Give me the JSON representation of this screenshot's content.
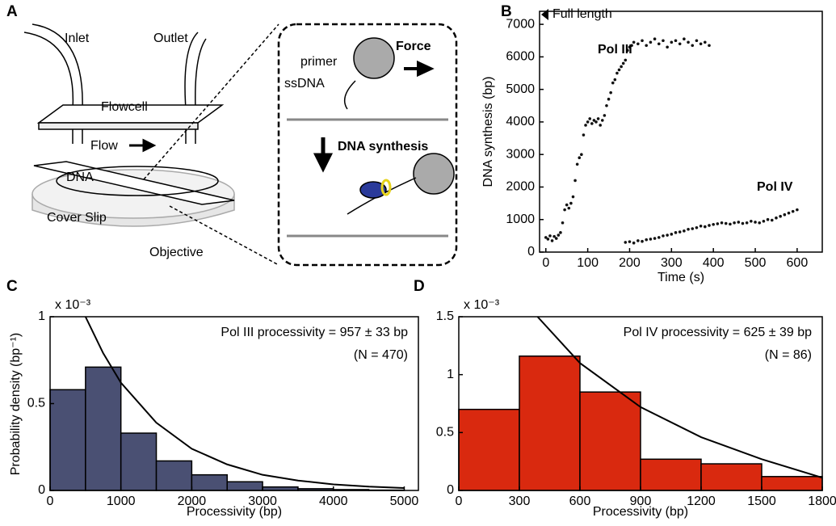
{
  "panel_labels": [
    "A",
    "B",
    "C",
    "D"
  ],
  "diagram": {
    "inlet": "Inlet",
    "outlet": "Outlet",
    "flowcell": "Flowcell",
    "flow": "Flow",
    "dna": "DNA",
    "cover_slip": "Cover Slip",
    "objective": "Objective",
    "primer": "primer",
    "ssdna": "ssDNA",
    "force": "Force",
    "dna_synthesis": "DNA synthesis"
  },
  "chart_data": [
    {
      "type": "scatter",
      "xlabel": "Time (s)",
      "ylabel": "DNA synthesis (bp)",
      "xlim": [
        -15,
        660
      ],
      "ylim": [
        0,
        7400
      ],
      "xticks": [
        0,
        100,
        200,
        300,
        400,
        500,
        600
      ],
      "yticks": [
        0,
        1000,
        2000,
        3000,
        4000,
        5000,
        6000,
        7000
      ],
      "annotations": [
        {
          "text": "Full length",
          "y": 7300
        }
      ],
      "series": [
        {
          "name": "Pol III",
          "color": "#111111",
          "label_color": "#4a4a8a",
          "x": [
            0,
            5,
            10,
            15,
            20,
            25,
            30,
            35,
            40,
            45,
            50,
            55,
            60,
            65,
            70,
            75,
            80,
            85,
            90,
            95,
            100,
            105,
            110,
            115,
            120,
            125,
            130,
            135,
            140,
            145,
            150,
            155,
            160,
            165,
            170,
            175,
            180,
            185,
            190,
            195,
            200,
            205,
            210,
            220,
            230,
            240,
            250,
            260,
            270,
            280,
            290,
            300,
            310,
            320,
            330,
            340,
            350,
            360,
            370,
            380,
            390
          ],
          "values": [
            450,
            400,
            500,
            350,
            480,
            420,
            520,
            600,
            900,
            1300,
            1450,
            1350,
            1500,
            1700,
            2200,
            2700,
            2900,
            3000,
            3600,
            3900,
            4000,
            4100,
            3950,
            4050,
            4000,
            4100,
            3900,
            4050,
            4200,
            4500,
            4700,
            4900,
            5200,
            5300,
            5500,
            5600,
            5700,
            5800,
            5900,
            6200,
            6300,
            6350,
            6450,
            6400,
            6500,
            6350,
            6450,
            6550,
            6400,
            6500,
            6300,
            6450,
            6500,
            6400,
            6550,
            6450,
            6350,
            6500,
            6400,
            6450,
            6350
          ]
        },
        {
          "name": "Pol IV",
          "color": "#111111",
          "label_color": "#e0161b",
          "x": [
            190,
            200,
            210,
            220,
            230,
            240,
            250,
            260,
            270,
            280,
            290,
            300,
            310,
            320,
            330,
            340,
            350,
            360,
            370,
            380,
            390,
            400,
            410,
            420,
            430,
            440,
            450,
            460,
            470,
            480,
            490,
            500,
            510,
            520,
            530,
            540,
            550,
            560,
            570,
            580,
            590,
            600
          ],
          "values": [
            300,
            320,
            280,
            350,
            330,
            380,
            400,
            420,
            450,
            500,
            520,
            550,
            600,
            620,
            650,
            700,
            720,
            750,
            800,
            780,
            820,
            850,
            870,
            900,
            880,
            860,
            900,
            920,
            880,
            900,
            950,
            920,
            900,
            950,
            1000,
            980,
            1050,
            1100,
            1150,
            1200,
            1250,
            1300
          ]
        }
      ]
    },
    {
      "type": "histogram",
      "xlabel": "Processivity (bp)",
      "ylabel": "Probability density (bp⁻¹)",
      "scale_label": "x 10⁻³",
      "xlim": [
        0,
        5200
      ],
      "ylim": [
        0,
        1
      ],
      "xticks": [
        0,
        1000,
        2000,
        3000,
        4000,
        5000
      ],
      "yticks": [
        0,
        0.5,
        1
      ],
      "bins": [
        0,
        500,
        1000,
        1500,
        2000,
        2500,
        3000,
        3500,
        4000,
        4500,
        5000
      ],
      "values": [
        0.58,
        0.71,
        0.33,
        0.17,
        0.09,
        0.05,
        0.02,
        0.01,
        0.005,
        0.002
      ],
      "color": "#4a5073",
      "fit": {
        "x": [
          500,
          750,
          1000,
          1500,
          2000,
          2500,
          3000,
          3500,
          4000,
          4500,
          5000
        ],
        "values": [
          1.0,
          0.79,
          0.62,
          0.39,
          0.24,
          0.15,
          0.09,
          0.057,
          0.035,
          0.022,
          0.014
        ],
        "color": "#000000"
      },
      "annotations": [
        "Pol III processivity = 957 ± 33 bp",
        "(N = 470)"
      ]
    },
    {
      "type": "histogram",
      "xlabel": "Processivity (bp)",
      "scale_label": "x 10⁻³",
      "xlim": [
        0,
        1800
      ],
      "ylim": [
        0,
        1.5
      ],
      "xticks": [
        0,
        300,
        600,
        900,
        1200,
        1500,
        1800
      ],
      "yticks": [
        0,
        0.5,
        1,
        1.5
      ],
      "bins": [
        0,
        300,
        600,
        900,
        1200,
        1500,
        1800
      ],
      "values": [
        0.7,
        1.16,
        0.85,
        0.27,
        0.23,
        0.12
      ],
      "color": "#d9290f",
      "fit": {
        "x": [
          390,
          600,
          900,
          1200,
          1500,
          1800
        ],
        "values": [
          1.5,
          1.1,
          0.72,
          0.46,
          0.27,
          0.11
        ],
        "color": "#000000"
      },
      "annotations": [
        "Pol IV processivity = 625 ± 39 bp",
        "(N = 86)"
      ]
    }
  ]
}
